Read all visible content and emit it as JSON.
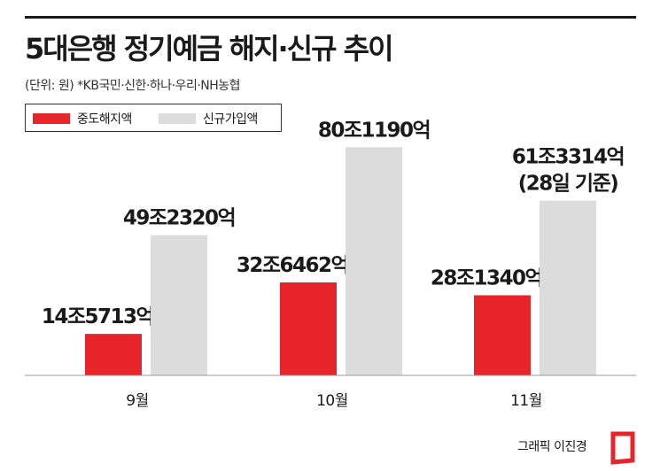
{
  "header": {
    "title": "5대은행 정기예금 해지·신규 추이",
    "subtitle": "(단위: 원) *KB국민·신한·하나·우리·NH농협"
  },
  "credit": "그래픽 이진경",
  "colors": {
    "early_termination": "#e8242b",
    "new_subscription": "#dcdcdc",
    "rule": "#1a1a1a"
  },
  "chart_data": {
    "type": "bar",
    "title": "5대은행 정기예금 해지·신규 추이",
    "unit": "원",
    "categories": [
      "9월",
      "10월",
      "11월"
    ],
    "series": [
      {
        "name": "중도해지액",
        "values": [
          145713,
          326462,
          281340
        ],
        "labels": [
          "14조5713억",
          "32조6462억",
          "28조1340억"
        ]
      },
      {
        "name": "신규가입액",
        "values": [
          492320,
          801190,
          613314
        ],
        "labels": [
          "49조2320억",
          "80조1190억",
          "61조3314억\n(28일 기준)"
        ]
      }
    ],
    "value_unit": "억원",
    "grid": false,
    "legend_position": "top-left",
    "ylim": [
      0,
      830000
    ]
  }
}
